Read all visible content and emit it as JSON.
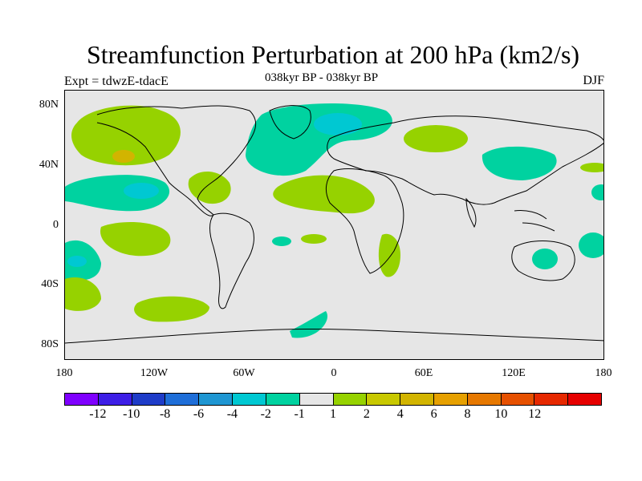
{
  "header": {
    "title": "Streamfunction Perturbation at 200 hPa (km2/s)",
    "subtitle": "038kyr BP - 038kyr BP",
    "left_label": "Expt = tdwzE-tdacE",
    "right_label": "DJF"
  },
  "axes": {
    "lat_labels": [
      "80N",
      "40N",
      "0",
      "40S",
      "80S"
    ],
    "lon_labels": [
      "180",
      "120W",
      "60W",
      "0",
      "60E",
      "120E",
      "180"
    ]
  },
  "colorbar": {
    "colors": [
      "#7f00ff",
      "#3d1ee6",
      "#1e3cc8",
      "#1e6ed8",
      "#1e96d2",
      "#00c8d2",
      "#00d2a0",
      "#e6e6e6",
      "#96d200",
      "#c8c800",
      "#d2b400",
      "#e6a000",
      "#e67800",
      "#e65000",
      "#e62800",
      "#e60000"
    ],
    "labels": [
      "-12",
      "-10",
      "-8",
      "-6",
      "-4",
      "-2",
      "-1",
      "1",
      "2",
      "4",
      "6",
      "8",
      "10",
      "12"
    ]
  },
  "colors": {
    "background": "#ffffff",
    "map_background": "#e6e6e6",
    "teal": "#00d2a0",
    "cyan": "#00c8d2",
    "lightgreen": "#96d200",
    "yellow": "#c8c800",
    "gold": "#d2b400"
  }
}
